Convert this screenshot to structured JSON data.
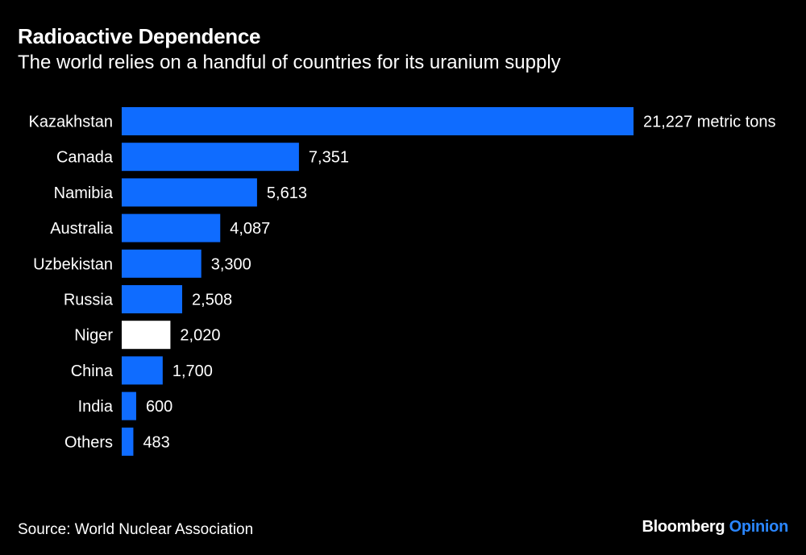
{
  "title": "Radioactive Dependence",
  "subtitle": "The world relies on a handful of countries for its uranium supply",
  "source": "Source: World Nuclear Association",
  "brand": {
    "name": "Bloomberg",
    "section": "Opinion"
  },
  "colors": {
    "background": "#000000",
    "bar": "#0f6cff",
    "highlight_bar": "#ffffff",
    "text": "#ffffff",
    "brand_accent": "#2a86ff"
  },
  "chart_data": {
    "type": "bar",
    "orientation": "horizontal",
    "title": "Radioactive Dependence",
    "subtitle": "The world relies on a handful of countries for its uranium supply",
    "xlabel": "",
    "ylabel": "",
    "unit": "metric tons",
    "categories": [
      "Kazakhstan",
      "Canada",
      "Namibia",
      "Australia",
      "Uzbekistan",
      "Russia",
      "Niger",
      "China",
      "India",
      "Others"
    ],
    "values": [
      21227,
      7351,
      5613,
      4087,
      3300,
      2508,
      2020,
      1700,
      600,
      483
    ],
    "value_labels": [
      "21,227 metric tons",
      "7,351",
      "5,613",
      "4,087",
      "3,300",
      "2,508",
      "2,020",
      "1,700",
      "600",
      "483"
    ],
    "highlight": "Niger",
    "xlim": [
      0,
      21227
    ],
    "grid": false,
    "legend": "none"
  }
}
